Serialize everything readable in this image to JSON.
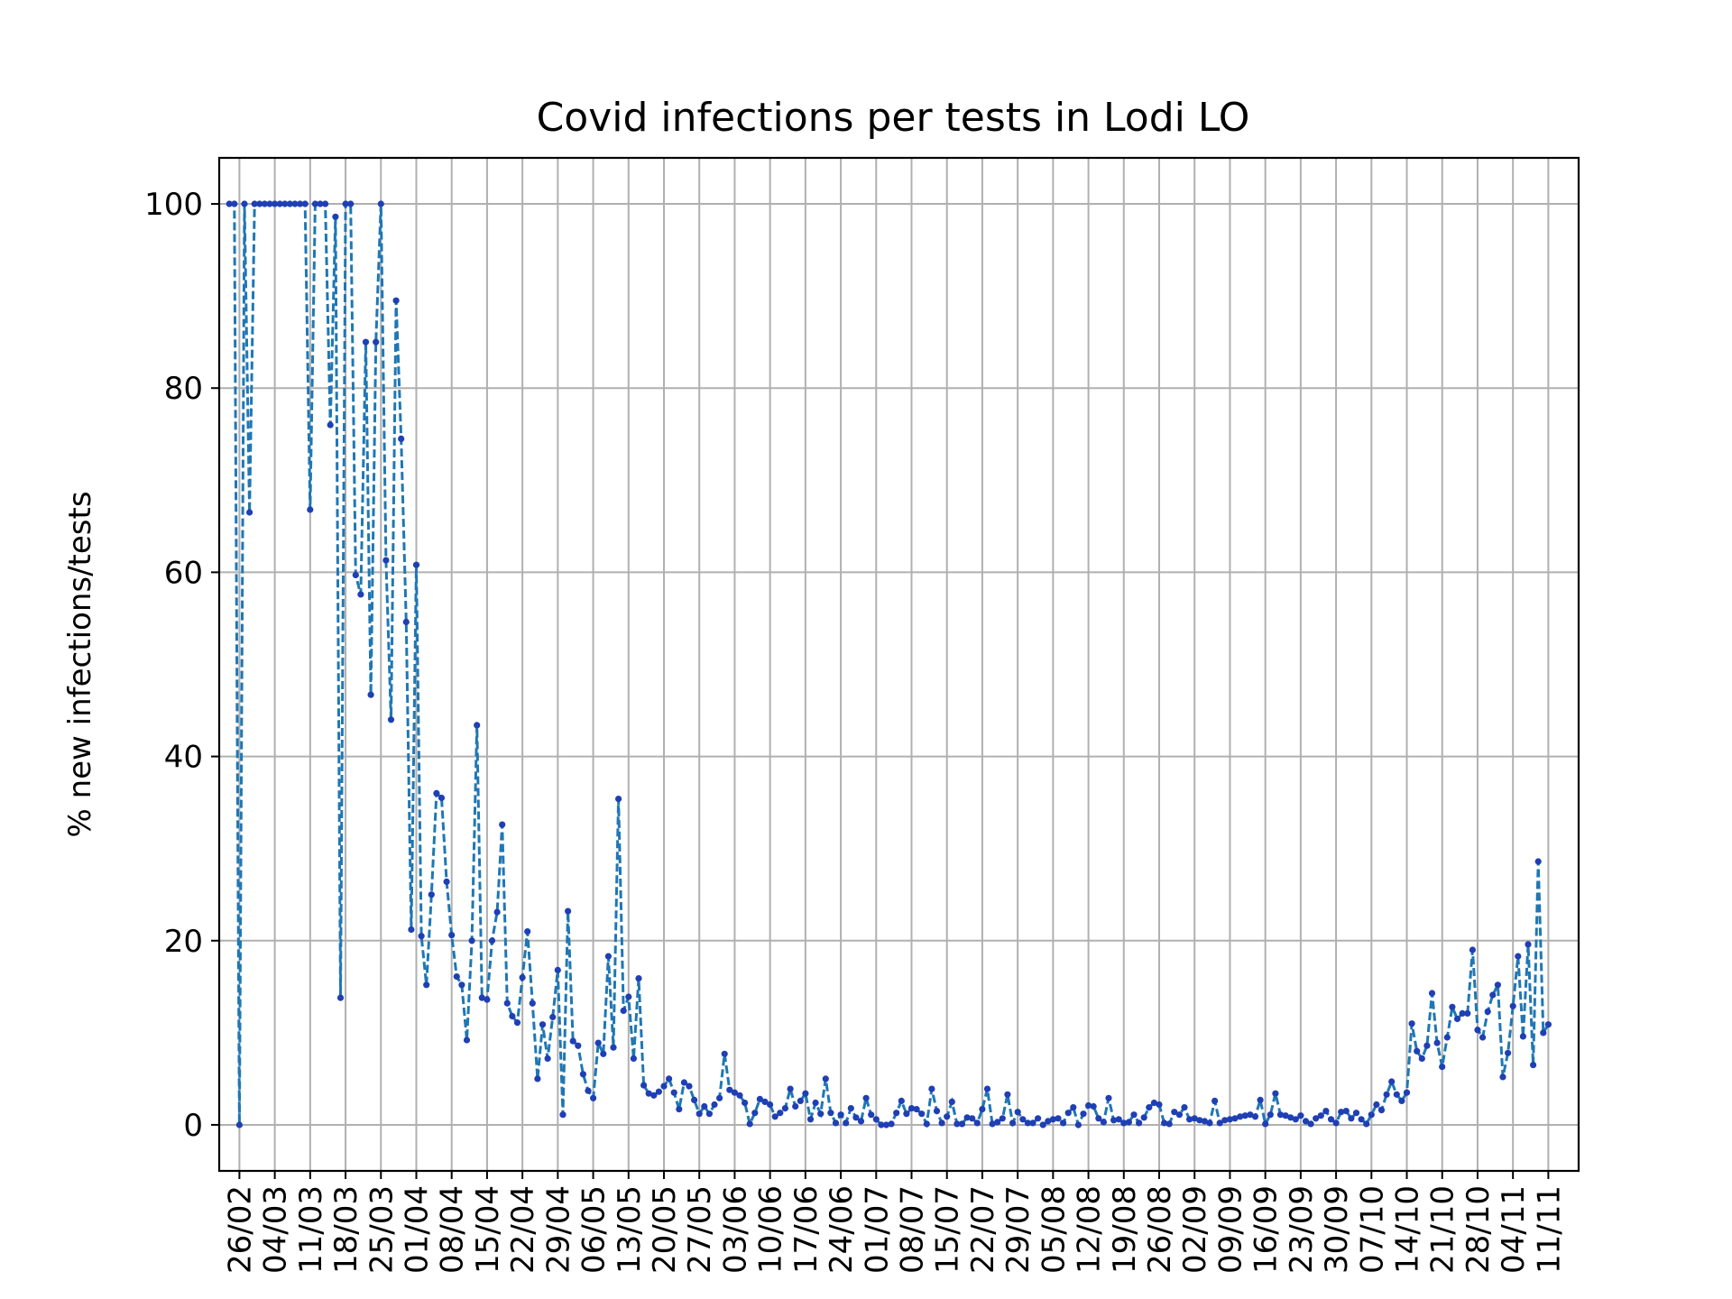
{
  "chart_data": {
    "type": "line",
    "title": "Covid infections per tests in Lodi LO",
    "xlabel": "",
    "ylabel": "% new infections/tests",
    "ylim": [
      -5,
      105
    ],
    "yticks": [
      0,
      20,
      40,
      60,
      80,
      100
    ],
    "x_range_days": [
      -4,
      265
    ],
    "x_tick_labels": [
      "26/02",
      "04/03",
      "11/03",
      "18/03",
      "25/03",
      "01/04",
      "08/04",
      "15/04",
      "22/04",
      "29/04",
      "06/05",
      "13/05",
      "20/05",
      "27/05",
      "03/06",
      "10/06",
      "17/06",
      "24/06",
      "01/07",
      "08/07",
      "15/07",
      "22/07",
      "29/07",
      "05/08",
      "12/08",
      "19/08",
      "26/08",
      "02/09",
      "09/09",
      "16/09",
      "23/09",
      "30/09",
      "07/10",
      "14/10",
      "21/10",
      "28/10",
      "04/11",
      "11/11"
    ],
    "grid": true,
    "legend": "none",
    "colors": {
      "line": "#1f77b4",
      "marker": "#1f3fb4",
      "grid": "#b0b0b0"
    },
    "series": [
      {
        "x_start": "24/02",
        "x_end": "12/11",
        "values": [
          100,
          100,
          0,
          100,
          66.5,
          100,
          100,
          100,
          100,
          100,
          100,
          100,
          100,
          100,
          100,
          100,
          66.8,
          100,
          100,
          100,
          76,
          98.6,
          13.8,
          100,
          100,
          59.7,
          57.6,
          85,
          46.7,
          85,
          100,
          61.3,
          44,
          89.5,
          74.5,
          54.6,
          21.2,
          60.8,
          20.5,
          15.2,
          25,
          36,
          35.5,
          26.4,
          20.6,
          16.1,
          15.2,
          9.2,
          20,
          43.4,
          13.8,
          13.6,
          20,
          23.1,
          32.6,
          13.2,
          11.8,
          11.1,
          16,
          21,
          13.2,
          5,
          10.9,
          7.2,
          11.7,
          16.8,
          1.1,
          23.2,
          9.1,
          8.6,
          5.5,
          3.7,
          2.9,
          8.9,
          7.7,
          18.3,
          8.4,
          35.4,
          12.4,
          13.9,
          7.2,
          15.9,
          4.3,
          3.4,
          3.2,
          3.6,
          4.2,
          5,
          3.5,
          1.7,
          4.6,
          4.2,
          2.7,
          1.2,
          2,
          1.2,
          2.2,
          2.9,
          7.7,
          3.8,
          3.5,
          3.2,
          2.4,
          0.1,
          1.3,
          2.8,
          2.5,
          2.2,
          0.9,
          1.3,
          1.8,
          3.9,
          2,
          2.6,
          3.4,
          0.6,
          2.4,
          1.2,
          5,
          1.3,
          0.2,
          1.1,
          0.2,
          1.8,
          0.8,
          0.4,
          2.9,
          1.1,
          0.6,
          0,
          0,
          0.1,
          1.3,
          2.6,
          1.2,
          1.8,
          1.7,
          1.2,
          0.1,
          3.9,
          1.5,
          0.2,
          0.9,
          2.5,
          0.1,
          0.1,
          0.8,
          0.7,
          0.2,
          1.7,
          3.9,
          0.1,
          0.3,
          0.7,
          3.3,
          0.2,
          1.4,
          0.6,
          0.2,
          0.2,
          0.7,
          0,
          0.4,
          0.6,
          0.7,
          0.2,
          1.3,
          1.9,
          0,
          1.2,
          2.1,
          2,
          0.7,
          0.3,
          2.9,
          0.5,
          0.6,
          0.2,
          0.3,
          1.1,
          0.2,
          0.8,
          1.9,
          2.4,
          2.2,
          0.2,
          0.1,
          1.4,
          1.1,
          1.9,
          0.6,
          0.7,
          0.5,
          0.4,
          0.2,
          2.6,
          0.2,
          0.5,
          0.6,
          0.7,
          0.9,
          1,
          1.1,
          0.9,
          2.7,
          0.1,
          1.1,
          3.4,
          1.1,
          1,
          0.8,
          0.6,
          1,
          0.4,
          0.1,
          0.7,
          1,
          1.5,
          0.6,
          0.2,
          1.4,
          1.5,
          0.7,
          1.3,
          0.6,
          0.1,
          1.1,
          2.2,
          1.6,
          3.3,
          4.7,
          3.3,
          2.6,
          3.5,
          11,
          8,
          7.2,
          8.6,
          14.3,
          8.9,
          6.3,
          9.5,
          12.8,
          11.5,
          12.1,
          12.1,
          19,
          10.3,
          9.5,
          12.3,
          14.1,
          15.2,
          5.2,
          7.8,
          12.9,
          18.3,
          9.6,
          19.6,
          6.5,
          28.6,
          10,
          10.9
        ]
      }
    ]
  }
}
